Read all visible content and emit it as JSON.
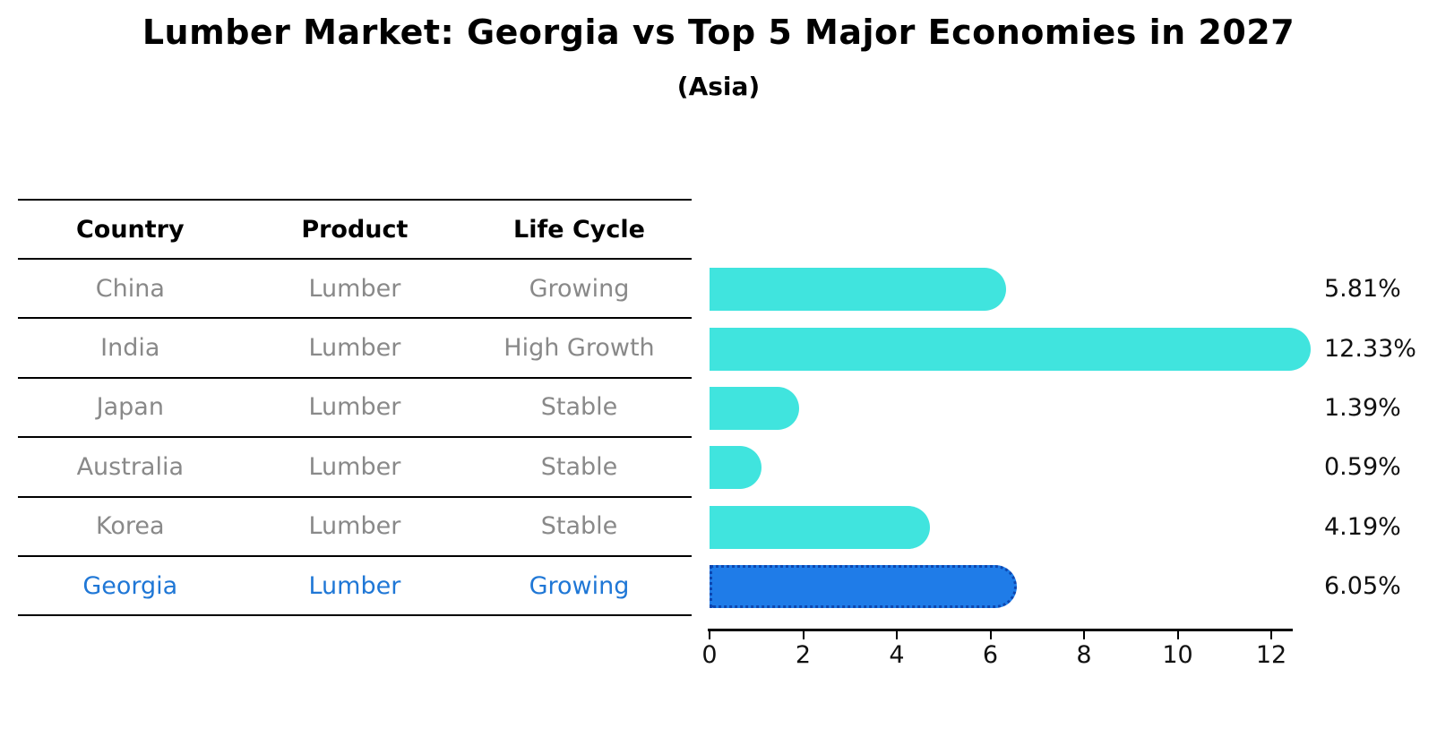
{
  "title": "Lumber Market: Georgia vs Top 5 Major Economies in 2027",
  "subtitle": "(Asia)",
  "table": {
    "headers": [
      "Country",
      "Product",
      "Life Cycle"
    ],
    "rows": [
      {
        "country": "China",
        "product": "Lumber",
        "life_cycle": "Growing",
        "highlight": false
      },
      {
        "country": "India",
        "product": "Lumber",
        "life_cycle": "High Growth",
        "highlight": false
      },
      {
        "country": "Japan",
        "product": "Lumber",
        "life_cycle": "Stable",
        "highlight": false
      },
      {
        "country": "Australia",
        "product": "Lumber",
        "life_cycle": "Stable",
        "highlight": false
      },
      {
        "country": "Korea",
        "product": "Lumber",
        "life_cycle": "Stable",
        "highlight": false
      },
      {
        "country": "Georgia",
        "product": "Lumber",
        "life_cycle": "Growing",
        "highlight": true
      }
    ]
  },
  "chart_data": {
    "type": "bar",
    "orientation": "horizontal",
    "categories": [
      "China",
      "India",
      "Japan",
      "Australia",
      "Korea",
      "Georgia"
    ],
    "values": [
      5.81,
      12.33,
      1.39,
      0.59,
      4.19,
      6.05
    ],
    "value_labels": [
      "5.81%",
      "12.33%",
      "1.39%",
      "0.59%",
      "4.19%",
      "6.05%"
    ],
    "x_ticks": [
      0,
      2,
      4,
      6,
      8,
      10,
      12
    ],
    "xlim": [
      0,
      12.8
    ],
    "grid": false,
    "legend": false,
    "bar_color": "#40E4DE",
    "highlight_index": 5,
    "highlight_color": "#1F7CE8",
    "highlight_border_color": "#0D47B0",
    "highlight_text_color": "#1F77D6"
  }
}
